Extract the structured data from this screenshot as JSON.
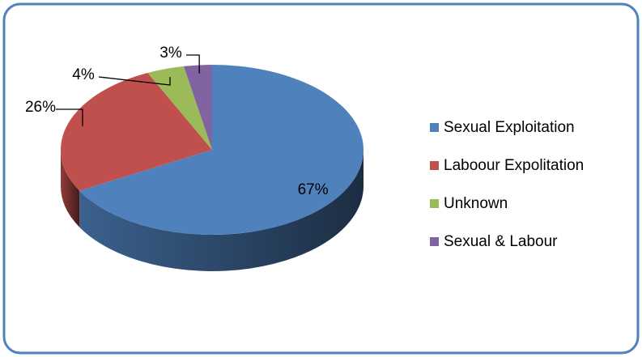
{
  "chart_data": {
    "type": "pie",
    "categories": [
      "Sexual Exploitation",
      "Laboour Expolitation",
      "Unknown",
      "Sexual & Labour"
    ],
    "values": [
      67,
      26,
      4,
      3
    ],
    "value_labels": [
      "67%",
      "26%",
      "4%",
      "3%"
    ],
    "colors": [
      "#4f81bd",
      "#c0504d",
      "#9bbb59",
      "#8064a2"
    ],
    "legend": "right"
  }
}
